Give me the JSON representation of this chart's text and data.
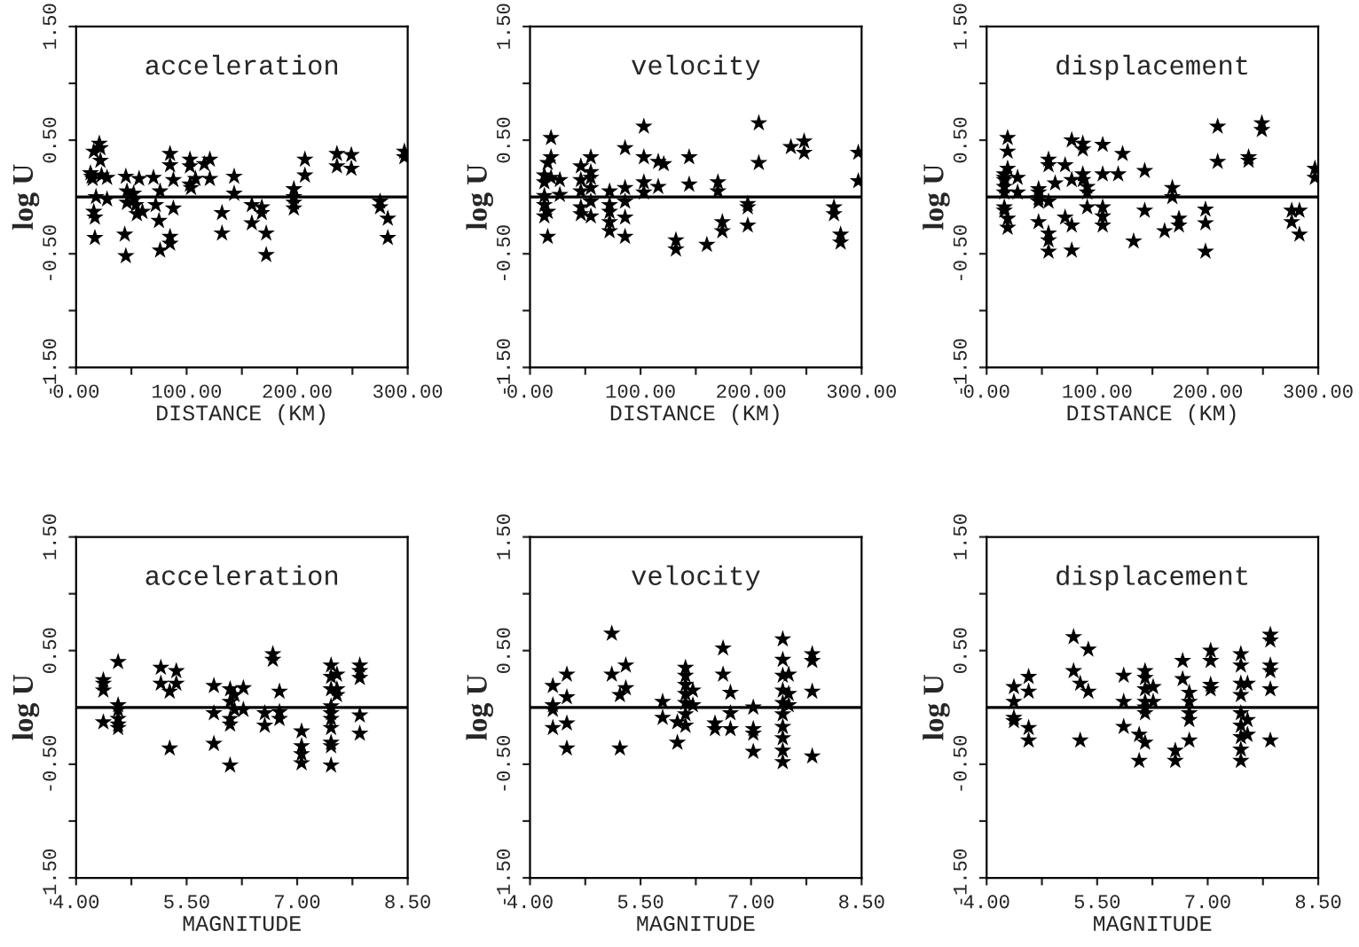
{
  "chart_data": [
    {
      "type": "scatter",
      "title": "acceleration",
      "xlabel": "DISTANCE (KM)",
      "ylabel": "log U",
      "marker": "star",
      "color": "#000000",
      "grid": false,
      "xlim": [
        0,
        300
      ],
      "xticks": [
        {
          "value": 0,
          "label": "0.00"
        },
        {
          "value": 50,
          "label": null
        },
        {
          "value": 100,
          "label": "100.00"
        },
        {
          "value": 150,
          "label": null
        },
        {
          "value": 200,
          "label": "200.00"
        },
        {
          "value": 250,
          "label": null
        },
        {
          "value": 300,
          "label": "300.00"
        }
      ],
      "ylim": [
        -1.5,
        1.5
      ],
      "yticks": [
        {
          "value": -1.5,
          "label": "-1.50"
        },
        {
          "value": -1,
          "label": null
        },
        {
          "value": -0.5,
          "label": "-0.50"
        },
        {
          "value": 0.5,
          "label": "0.50"
        },
        {
          "value": 1,
          "label": null
        },
        {
          "value": 1.5,
          "label": "1.50"
        }
      ],
      "ref_lines": [
        {
          "axis": "y",
          "value": 0,
          "color": "#000000"
        }
      ],
      "x": [
        13,
        14,
        15,
        16,
        17,
        18,
        16,
        17,
        21,
        22,
        22,
        23,
        28,
        28,
        44,
        45,
        45,
        46,
        46,
        52,
        53,
        54,
        55,
        57,
        60,
        70,
        72,
        75,
        76,
        76,
        85,
        85,
        85,
        85,
        88,
        88,
        103,
        103,
        103,
        104,
        108,
        116,
        121,
        121,
        132,
        132,
        143,
        143,
        159,
        159,
        168,
        168,
        172,
        172,
        197,
        197,
        197,
        197,
        207,
        207,
        236,
        236,
        249,
        249,
        275,
        275,
        282,
        282,
        297,
        297
      ],
      "values": [
        0.21,
        0.18,
        0.16,
        -0.13,
        -0.18,
        0.0,
        0.4,
        -0.36,
        0.47,
        0.43,
        0.32,
        0.19,
        0.17,
        -0.02,
        -0.33,
        0.18,
        -0.52,
        0.05,
        -0.05,
        0.03,
        -0.02,
        -0.07,
        -0.15,
        0.16,
        -0.13,
        0.17,
        -0.07,
        -0.21,
        -0.47,
        0.05,
        0.38,
        0.28,
        -0.35,
        -0.41,
        0.15,
        -0.1,
        0.33,
        0.27,
        0.11,
        0.08,
        0.16,
        0.29,
        0.33,
        0.16,
        -0.14,
        -0.32,
        0.18,
        0.03,
        -0.07,
        -0.23,
        -0.09,
        -0.14,
        -0.32,
        -0.51,
        0.07,
        0.0,
        -0.05,
        -0.1,
        0.33,
        0.19,
        0.38,
        0.27,
        0.37,
        0.25,
        -0.04,
        -0.09,
        -0.19,
        -0.36,
        0.4,
        0.35
      ]
    },
    {
      "type": "scatter",
      "title": "velocity",
      "xlabel": "DISTANCE (KM)",
      "ylabel": "log U",
      "marker": "star",
      "color": "#000000",
      "grid": false,
      "xlim": [
        0,
        300
      ],
      "xticks": [
        {
          "value": 0,
          "label": "0.00"
        },
        {
          "value": 50,
          "label": null
        },
        {
          "value": 100,
          "label": "100.00"
        },
        {
          "value": 150,
          "label": null
        },
        {
          "value": 200,
          "label": "200.00"
        },
        {
          "value": 250,
          "label": null
        },
        {
          "value": 300,
          "label": "300.00"
        }
      ],
      "ylim": [
        -1.5,
        1.5
      ],
      "yticks": [
        {
          "value": -1.5,
          "label": "-1.50"
        },
        {
          "value": -1,
          "label": null
        },
        {
          "value": -0.5,
          "label": "-0.50"
        },
        {
          "value": 0.5,
          "label": "0.50"
        },
        {
          "value": 1,
          "label": null
        },
        {
          "value": 1.5,
          "label": "1.50"
        }
      ],
      "ref_lines": [
        {
          "axis": "y",
          "value": 0,
          "color": "#000000"
        }
      ],
      "x": [
        13,
        13,
        13,
        13,
        13,
        16,
        16,
        16,
        19,
        19,
        19,
        27,
        27,
        46,
        46,
        46,
        46,
        46,
        55,
        55,
        55,
        55,
        55,
        55,
        72,
        72,
        72,
        72,
        72,
        86,
        86,
        86,
        86,
        86,
        103,
        103,
        103,
        103,
        116,
        116,
        121,
        132,
        132,
        144,
        144,
        160,
        170,
        170,
        174,
        174,
        197,
        197,
        197,
        207,
        207,
        236,
        248,
        248,
        275,
        275,
        281,
        281,
        297,
        297
      ],
      "values": [
        0.19,
        0.13,
        0.01,
        -0.07,
        -0.17,
        -0.13,
        -0.35,
        0.3,
        0.35,
        0.52,
        0.17,
        0.15,
        0.02,
        0.15,
        0.05,
        -0.09,
        -0.15,
        0.27,
        0.08,
        -0.04,
        -0.17,
        0.35,
        0.22,
        0.17,
        0.05,
        -0.07,
        -0.13,
        -0.22,
        -0.3,
        0.43,
        0.08,
        -0.18,
        -0.35,
        -0.04,
        0.62,
        0.35,
        0.13,
        0.04,
        0.09,
        0.31,
        0.29,
        -0.38,
        -0.46,
        0.35,
        0.11,
        -0.42,
        0.13,
        0.05,
        -0.22,
        -0.3,
        -0.06,
        -0.09,
        -0.25,
        0.65,
        0.3,
        0.44,
        0.49,
        0.39,
        -0.09,
        -0.15,
        -0.33,
        -0.4,
        0.39,
        0.14
      ]
    },
    {
      "type": "scatter",
      "title": "displacement",
      "xlabel": "DISTANCE (KM)",
      "ylabel": "log U",
      "marker": "star",
      "color": "#000000",
      "grid": false,
      "xlim": [
        0,
        300
      ],
      "xticks": [
        {
          "value": 0,
          "label": "0.00"
        },
        {
          "value": 50,
          "label": null
        },
        {
          "value": 100,
          "label": "100.00"
        },
        {
          "value": 150,
          "label": null
        },
        {
          "value": 200,
          "label": "200.00"
        },
        {
          "value": 250,
          "label": null
        },
        {
          "value": 300,
          "label": "300.00"
        }
      ],
      "ylim": [
        -1.5,
        1.5
      ],
      "yticks": [
        {
          "value": -1.5,
          "label": "-1.50"
        },
        {
          "value": -1,
          "label": null
        },
        {
          "value": -0.5,
          "label": "-0.50"
        },
        {
          "value": 0.5,
          "label": "0.50"
        },
        {
          "value": 1,
          "label": null
        },
        {
          "value": 1.5,
          "label": "1.50"
        }
      ],
      "ref_lines": [
        {
          "axis": "y",
          "value": 0,
          "color": "#000000"
        }
      ],
      "x": [
        16,
        16,
        16,
        16,
        16,
        16,
        16,
        19,
        19,
        19,
        19,
        19,
        28,
        28,
        47,
        47,
        47,
        47,
        47,
        56,
        56,
        56,
        56,
        56,
        56,
        62,
        71,
        71,
        77,
        77,
        77,
        77,
        87,
        87,
        87,
        87,
        91,
        91,
        91,
        105,
        105,
        105,
        105,
        105,
        119,
        123,
        133,
        143,
        143,
        161,
        168,
        168,
        174,
        174,
        198,
        198,
        198,
        209,
        209,
        237,
        237,
        249,
        249,
        276,
        276,
        283,
        283,
        297,
        297
      ],
      "values": [
        0.2,
        0.17,
        0.15,
        0.09,
        0.04,
        -0.09,
        -0.12,
        -0.19,
        -0.27,
        0.25,
        0.52,
        0.4,
        0.17,
        0.04,
        0.07,
        0.04,
        -0.01,
        -0.04,
        -0.22,
        0.33,
        0.28,
        -0.04,
        -0.38,
        -0.32,
        -0.48,
        0.12,
        0.28,
        -0.18,
        0.5,
        0.15,
        -0.25,
        -0.47,
        0.47,
        0.42,
        0.2,
        0.15,
        0.09,
        0.04,
        -0.09,
        0.46,
        0.2,
        -0.09,
        -0.17,
        -0.25,
        0.2,
        0.38,
        -0.39,
        0.23,
        -0.12,
        -0.3,
        0.08,
        0.0,
        -0.19,
        -0.25,
        -0.11,
        -0.23,
        -0.48,
        0.62,
        0.31,
        0.35,
        0.32,
        0.65,
        0.59,
        -0.12,
        -0.22,
        -0.12,
        -0.33,
        0.25,
        0.17
      ]
    },
    {
      "type": "scatter",
      "title": "acceleration",
      "xlabel": "MAGNITUDE",
      "ylabel": "log U",
      "marker": "star",
      "color": "#000000",
      "grid": false,
      "xlim": [
        4,
        8.5
      ],
      "xticks": [
        {
          "value": 4,
          "label": "4.00"
        },
        {
          "value": 4.75,
          "label": null
        },
        {
          "value": 5.5,
          "label": "5.50"
        },
        {
          "value": 6.25,
          "label": null
        },
        {
          "value": 7,
          "label": "7.00"
        },
        {
          "value": 7.75,
          "label": null
        },
        {
          "value": 8.5,
          "label": "8.50"
        }
      ],
      "ylim": [
        -1.5,
        1.5
      ],
      "yticks": [
        {
          "value": -1.5,
          "label": "-1.50"
        },
        {
          "value": -1,
          "label": null
        },
        {
          "value": -0.5,
          "label": "-0.50"
        },
        {
          "value": 0.5,
          "label": "0.50"
        },
        {
          "value": 1,
          "label": null
        },
        {
          "value": 1.5,
          "label": "1.50"
        }
      ],
      "ref_lines": [
        {
          "axis": "y",
          "value": 0,
          "color": "#000000"
        }
      ],
      "x": [
        4.37,
        4.37,
        4.37,
        4.37,
        4.57,
        4.57,
        4.57,
        4.57,
        4.57,
        4.57,
        5.15,
        5.15,
        5.27,
        5.27,
        5.36,
        5.36,
        5.87,
        5.87,
        5.87,
        6.09,
        6.09,
        6.09,
        6.09,
        6.09,
        6.15,
        6.15,
        6.27,
        6.27,
        6.56,
        6.56,
        6.67,
        6.67,
        6.76,
        6.76,
        6.76,
        7.06,
        7.06,
        7.06,
        7.06,
        7.46,
        7.46,
        7.46,
        7.46,
        7.46,
        7.46,
        7.46,
        7.46,
        7.46,
        7.46,
        7.54,
        7.54,
        7.54,
        7.85,
        7.85,
        7.85,
        7.85,
        7.85
      ],
      "values": [
        0.24,
        0.21,
        0.15,
        -0.13,
        0.4,
        0.02,
        -0.02,
        -0.1,
        -0.15,
        -0.18,
        0.35,
        0.21,
        0.14,
        -0.36,
        0.32,
        0.21,
        0.19,
        -0.05,
        -0.32,
        0.16,
        0.05,
        -0.1,
        -0.15,
        -0.51,
        0.11,
        -0.02,
        0.17,
        -0.02,
        -0.05,
        -0.16,
        0.47,
        0.42,
        0.14,
        -0.04,
        -0.1,
        -0.21,
        -0.34,
        -0.41,
        -0.49,
        0.37,
        0.27,
        0.16,
        0.01,
        -0.05,
        -0.1,
        -0.18,
        -0.31,
        -0.34,
        -0.51,
        0.29,
        0.16,
        0.11,
        0.37,
        0.32,
        0.26,
        -0.07,
        -0.23
      ]
    },
    {
      "type": "scatter",
      "title": "velocity",
      "xlabel": "MAGNITUDE",
      "ylabel": "log U",
      "marker": "star",
      "color": "#000000",
      "grid": false,
      "xlim": [
        4,
        8.5
      ],
      "xticks": [
        {
          "value": 4,
          "label": "4.00"
        },
        {
          "value": 4.75,
          "label": null
        },
        {
          "value": 5.5,
          "label": "5.50"
        },
        {
          "value": 6.25,
          "label": null
        },
        {
          "value": 7,
          "label": "7.00"
        },
        {
          "value": 7.75,
          "label": null
        },
        {
          "value": 8.5,
          "label": "8.50"
        }
      ],
      "ylim": [
        -1.5,
        1.5
      ],
      "yticks": [
        {
          "value": -1.5,
          "label": "-1.50"
        },
        {
          "value": -1,
          "label": null
        },
        {
          "value": -0.5,
          "label": "-0.50"
        },
        {
          "value": 0.5,
          "label": "0.50"
        },
        {
          "value": 1,
          "label": null
        },
        {
          "value": 1.5,
          "label": "1.50"
        }
      ],
      "ref_lines": [
        {
          "axis": "y",
          "value": 0,
          "color": "#000000"
        }
      ],
      "x": [
        4.31,
        4.31,
        4.31,
        4.31,
        4.5,
        4.5,
        4.5,
        4.5,
        5.11,
        5.11,
        5.22,
        5.22,
        5.3,
        5.3,
        5.8,
        5.8,
        6.0,
        6.0,
        6.11,
        6.11,
        6.11,
        6.11,
        6.11,
        6.11,
        6.11,
        6.21,
        6.21,
        6.51,
        6.51,
        6.62,
        6.62,
        6.72,
        6.72,
        6.72,
        7.03,
        7.03,
        7.03,
        7.03,
        7.43,
        7.43,
        7.43,
        7.43,
        7.43,
        7.43,
        7.43,
        7.43,
        7.43,
        7.43,
        7.51,
        7.51,
        7.51,
        7.83,
        7.83,
        7.83,
        7.83
      ],
      "values": [
        0.19,
        0.02,
        -0.02,
        -0.18,
        0.29,
        0.09,
        -0.14,
        -0.36,
        0.65,
        0.29,
        0.11,
        -0.36,
        0.37,
        0.17,
        0.05,
        -0.09,
        -0.13,
        -0.31,
        0.35,
        0.28,
        0.2,
        0.12,
        0.04,
        -0.06,
        -0.16,
        0.15,
        0.02,
        -0.14,
        -0.19,
        0.52,
        0.29,
        0.13,
        -0.05,
        -0.19,
        0.0,
        -0.19,
        -0.23,
        -0.39,
        0.6,
        0.42,
        0.28,
        0.15,
        0.04,
        -0.06,
        -0.17,
        -0.27,
        -0.38,
        -0.48,
        0.29,
        0.12,
        0.02,
        0.47,
        0.41,
        0.14,
        -0.43
      ]
    },
    {
      "type": "scatter",
      "title": "displacement",
      "xlabel": "MAGNITUDE",
      "ylabel": "log U",
      "marker": "star",
      "color": "#000000",
      "grid": false,
      "xlim": [
        4,
        8.5
      ],
      "xticks": [
        {
          "value": 4,
          "label": "4.00"
        },
        {
          "value": 4.75,
          "label": null
        },
        {
          "value": 5.5,
          "label": "5.50"
        },
        {
          "value": 6.25,
          "label": null
        },
        {
          "value": 7,
          "label": "7.00"
        },
        {
          "value": 7.75,
          "label": null
        },
        {
          "value": 8.5,
          "label": "8.50"
        }
      ],
      "ylim": [
        -1.5,
        1.5
      ],
      "yticks": [
        {
          "value": -1.5,
          "label": "-1.50"
        },
        {
          "value": -1,
          "label": null
        },
        {
          "value": -0.5,
          "label": "-0.50"
        },
        {
          "value": 0.5,
          "label": "0.50"
        },
        {
          "value": 1,
          "label": null
        },
        {
          "value": 1.5,
          "label": "1.50"
        }
      ],
      "ref_lines": [
        {
          "axis": "y",
          "value": 0,
          "color": "#000000"
        }
      ],
      "x": [
        4.37,
        4.37,
        4.37,
        4.37,
        4.57,
        4.57,
        4.57,
        4.57,
        5.18,
        5.18,
        5.27,
        5.27,
        5.38,
        5.38,
        5.86,
        5.86,
        5.86,
        6.07,
        6.07,
        6.15,
        6.15,
        6.15,
        6.15,
        6.15,
        6.15,
        6.15,
        6.26,
        6.26,
        6.56,
        6.56,
        6.66,
        6.66,
        6.75,
        6.75,
        6.75,
        6.75,
        6.75,
        7.04,
        7.04,
        7.04,
        7.04,
        7.45,
        7.45,
        7.45,
        7.45,
        7.45,
        7.45,
        7.45,
        7.45,
        7.45,
        7.54,
        7.54,
        7.54,
        7.85,
        7.85,
        7.85,
        7.85,
        7.85,
        7.85
      ],
      "values": [
        0.18,
        0.05,
        -0.09,
        -0.12,
        0.27,
        0.14,
        -0.18,
        -0.29,
        0.62,
        0.32,
        0.21,
        -0.29,
        0.51,
        0.14,
        0.28,
        0.05,
        -0.17,
        -0.24,
        -0.47,
        0.32,
        0.26,
        0.16,
        0.05,
        0.0,
        -0.05,
        -0.31,
        0.18,
        0.05,
        -0.38,
        -0.47,
        0.41,
        0.25,
        0.13,
        0.05,
        -0.05,
        -0.11,
        -0.29,
        0.5,
        0.41,
        0.2,
        0.16,
        0.47,
        0.37,
        0.21,
        0.11,
        -0.05,
        -0.16,
        -0.26,
        -0.37,
        -0.47,
        0.21,
        -0.11,
        -0.24,
        0.64,
        0.59,
        0.37,
        0.32,
        0.16,
        -0.29
      ]
    }
  ]
}
